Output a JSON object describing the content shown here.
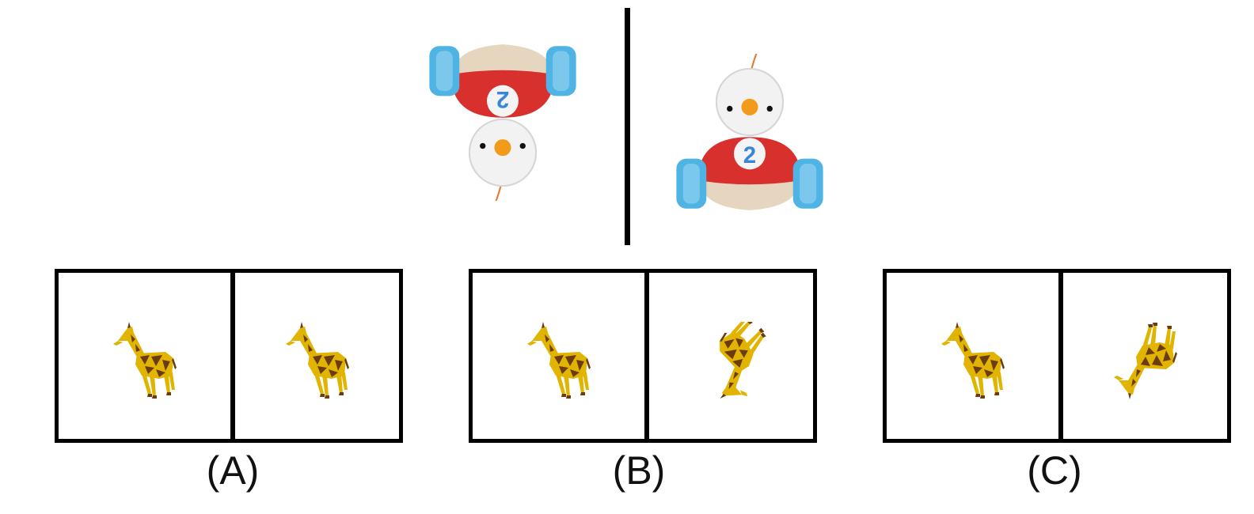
{
  "reference": {
    "left_toy": {
      "icon": "toy-car-bird-icon",
      "number": "2",
      "orientation": "rotated-180"
    },
    "right_toy": {
      "icon": "toy-car-bird-icon",
      "number": "2",
      "orientation": "upright"
    }
  },
  "options": [
    {
      "label": "(A)",
      "left_icon": "giraffe-icon",
      "right_icon": "giraffe-icon"
    },
    {
      "label": "(B)",
      "left_icon": "giraffe-icon",
      "right_icon": "giraffe-icon"
    },
    {
      "label": "(C)",
      "left_icon": "giraffe-icon",
      "right_icon": "giraffe-icon"
    }
  ],
  "colors": {
    "toy_body": "#d8302c",
    "toy_wheel": "#4fb3e3",
    "toy_base": "#e6d6bf",
    "toy_head": "#f2f2f2",
    "toy_beak": "#f29a1a",
    "toy_number": "#3a86d6",
    "giraffe_yellow": "#e0b400",
    "giraffe_brown": "#6b3b12"
  }
}
